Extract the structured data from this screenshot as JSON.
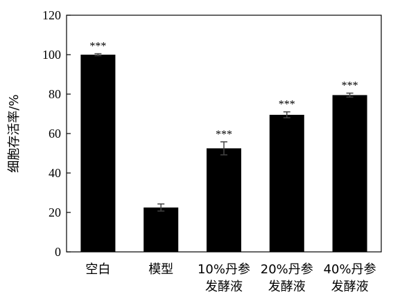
{
  "chart_data": {
    "type": "bar",
    "title": "",
    "xlabel": "",
    "ylabel": "细胞存活率/%",
    "ylim": [
      0,
      120
    ],
    "yticks": [
      0,
      20,
      40,
      60,
      80,
      100,
      120
    ],
    "grid": false,
    "categories": [
      [
        "空白"
      ],
      [
        "模型"
      ],
      [
        "10%丹参",
        "发酵液"
      ],
      [
        "20%丹参",
        "发酵液"
      ],
      [
        "40%丹参",
        "发酵液"
      ]
    ],
    "values": [
      100,
      22.5,
      52.5,
      69.5,
      79.5
    ],
    "errors": [
      0.5,
      1.8,
      3.3,
      1.5,
      1.0
    ],
    "annotations": [
      "***",
      "",
      "***",
      "***",
      "***"
    ],
    "bar_color": "#000000"
  }
}
